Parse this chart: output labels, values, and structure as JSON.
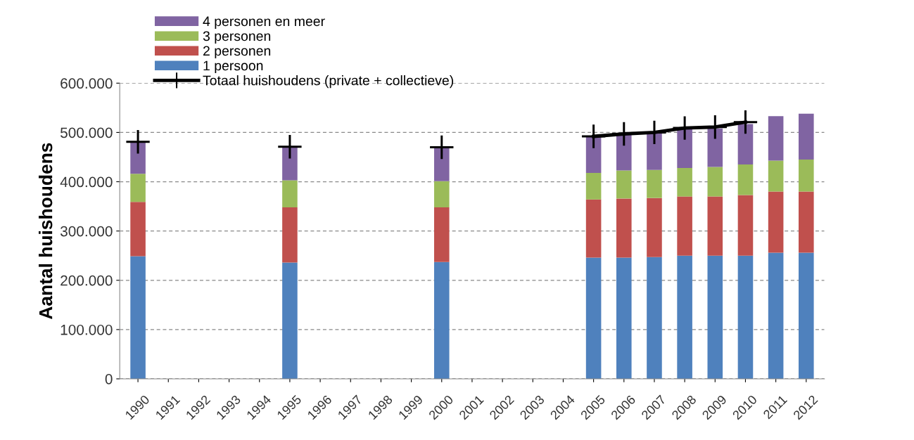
{
  "chart_data": {
    "type": "bar",
    "stacked": true,
    "ylabel": "Aantal huishoudens",
    "categories": [
      "1990",
      "1991",
      "1992",
      "1993",
      "1994",
      "1995",
      "1996",
      "1997",
      "1998",
      "1999",
      "2000",
      "2001",
      "2002",
      "2003",
      "2004",
      "2005",
      "2006",
      "2007",
      "2008",
      "2009",
      "2010",
      "2011",
      "2012"
    ],
    "series": [
      {
        "name": "1 persoon",
        "color": "#4f81bd",
        "values": [
          249000,
          null,
          null,
          null,
          null,
          236000,
          null,
          null,
          null,
          null,
          237000,
          null,
          null,
          null,
          null,
          246000,
          246000,
          247000,
          250000,
          250000,
          250000,
          256000,
          256000
        ]
      },
      {
        "name": "2 personen",
        "color": "#c0504d",
        "values": [
          110000,
          null,
          null,
          null,
          null,
          112000,
          null,
          null,
          null,
          null,
          111000,
          null,
          null,
          null,
          null,
          118000,
          120000,
          120000,
          120000,
          120000,
          123000,
          124000,
          124000
        ]
      },
      {
        "name": "3 personen",
        "color": "#9bbb59",
        "values": [
          57000,
          null,
          null,
          null,
          null,
          55000,
          null,
          null,
          null,
          null,
          53000,
          null,
          null,
          null,
          null,
          54000,
          57000,
          57000,
          58000,
          60000,
          62000,
          63000,
          65000
        ]
      },
      {
        "name": "4 personen en meer",
        "color": "#8064a2",
        "values": [
          65000,
          null,
          null,
          null,
          null,
          68000,
          null,
          null,
          null,
          null,
          69000,
          null,
          null,
          null,
          null,
          75000,
          72000,
          74000,
          79000,
          78000,
          82000,
          90000,
          93000
        ]
      },
      {
        "name": "Totaal huishoudens (private + collectieve)",
        "type": "line",
        "color": "#000000",
        "marker": "cross",
        "values": [
          481000,
          null,
          null,
          null,
          null,
          471000,
          null,
          null,
          null,
          null,
          470000,
          null,
          null,
          null,
          null,
          492000,
          497000,
          500000,
          509000,
          511000,
          521000,
          null,
          null
        ]
      }
    ],
    "ylim": [
      0,
      600000
    ],
    "yticks": [
      0,
      {
        "value": 100000,
        "label": "100.000"
      },
      {
        "value": 200000,
        "label": "200.000"
      },
      {
        "value": 300000,
        "label": "300.000"
      },
      {
        "value": 400000,
        "label": "400.000"
      },
      {
        "value": 500000,
        "label": "500.000"
      },
      {
        "value": 600000,
        "label": "600.000"
      }
    ],
    "grid": "y",
    "legend": "top left"
  }
}
